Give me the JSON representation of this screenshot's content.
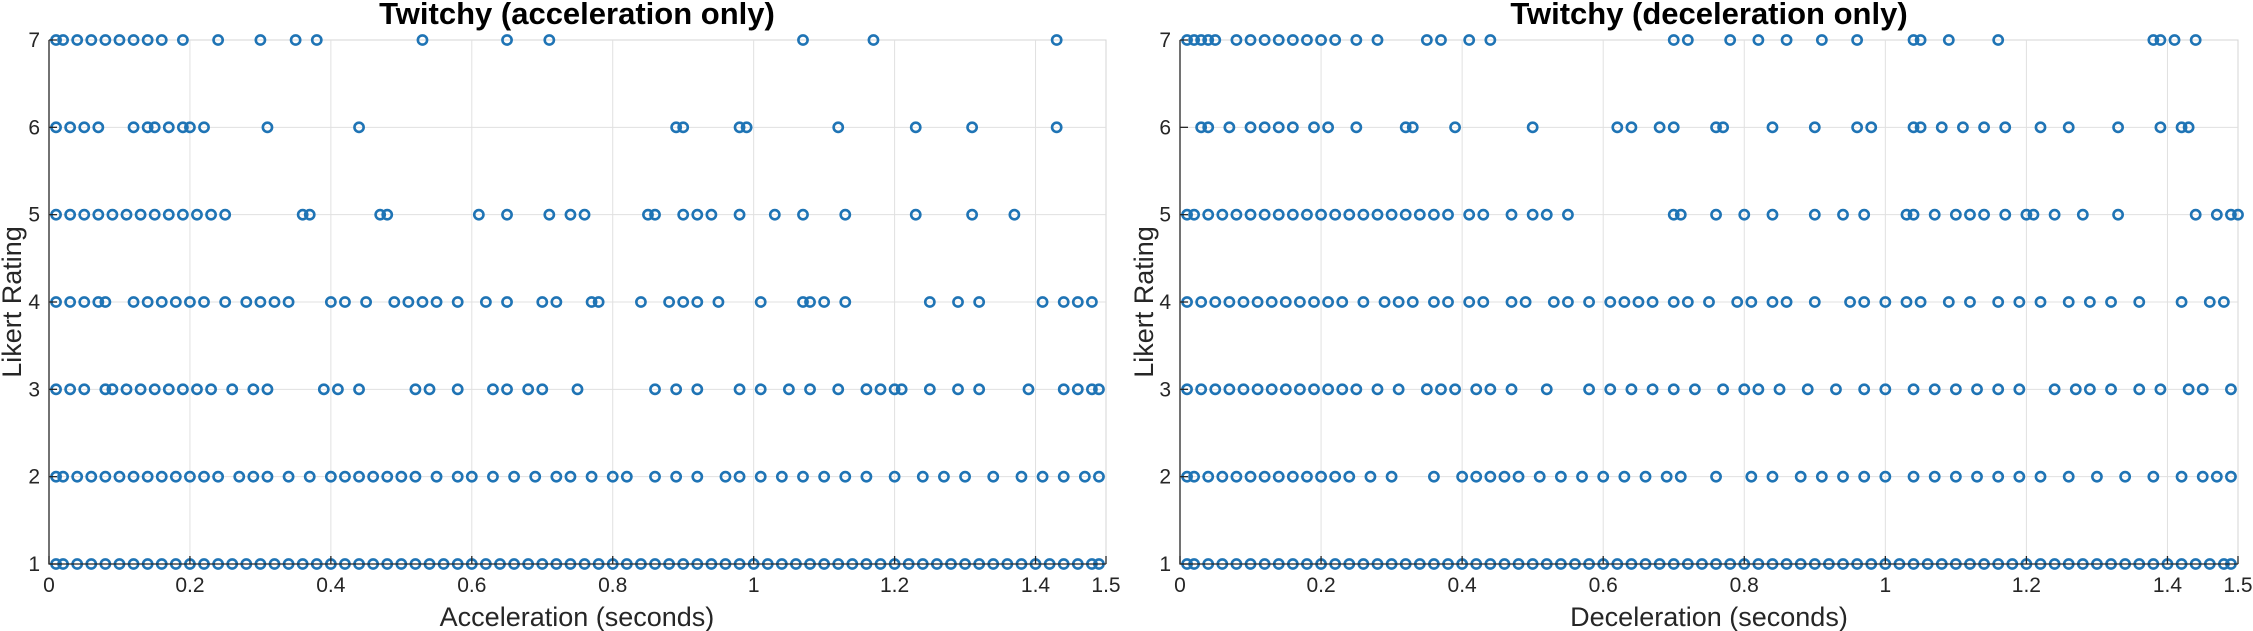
{
  "chart_data": [
    {
      "type": "scatter",
      "title": "Twitchy (acceleration only)",
      "xlabel": "Acceleration (seconds)",
      "ylabel": "Likert Rating",
      "xlim": [
        0,
        1.5
      ],
      "ylim": [
        1,
        7
      ],
      "xticks": [
        "0",
        "0.2",
        "0.4",
        "0.6",
        "0.8",
        "1",
        "1.2",
        "1.4",
        "1.5"
      ],
      "yticks": [
        "1",
        "2",
        "3",
        "4",
        "5",
        "6",
        "7"
      ],
      "grid": true,
      "color": "#1f74b5",
      "series": [
        {
          "y": 7,
          "x": [
            0.01,
            0.02,
            0.04,
            0.06,
            0.08,
            0.1,
            0.12,
            0.14,
            0.16,
            0.19,
            0.24,
            0.3,
            0.35,
            0.38,
            0.53,
            0.65,
            0.71,
            1.07,
            1.17,
            1.43
          ]
        },
        {
          "y": 6,
          "x": [
            0.01,
            0.03,
            0.05,
            0.07,
            0.12,
            0.14,
            0.15,
            0.17,
            0.19,
            0.2,
            0.22,
            0.31,
            0.44,
            0.89,
            0.9,
            0.98,
            0.99,
            1.12,
            1.23,
            1.31,
            1.43
          ]
        },
        {
          "y": 5,
          "x": [
            0.01,
            0.03,
            0.05,
            0.07,
            0.09,
            0.11,
            0.13,
            0.15,
            0.17,
            0.19,
            0.21,
            0.23,
            0.25,
            0.36,
            0.37,
            0.47,
            0.48,
            0.61,
            0.65,
            0.71,
            0.74,
            0.76,
            0.85,
            0.86,
            0.9,
            0.92,
            0.94,
            0.98,
            1.03,
            1.07,
            1.13,
            1.23,
            1.31,
            1.37
          ]
        },
        {
          "y": 4,
          "x": [
            0.01,
            0.03,
            0.05,
            0.07,
            0.08,
            0.12,
            0.14,
            0.16,
            0.18,
            0.2,
            0.22,
            0.25,
            0.28,
            0.3,
            0.32,
            0.34,
            0.4,
            0.42,
            0.45,
            0.49,
            0.51,
            0.53,
            0.55,
            0.58,
            0.62,
            0.65,
            0.7,
            0.72,
            0.77,
            0.78,
            0.84,
            0.88,
            0.9,
            0.92,
            0.95,
            1.01,
            1.07,
            1.08,
            1.1,
            1.13,
            1.25,
            1.29,
            1.32,
            1.41,
            1.44,
            1.46,
            1.48
          ]
        },
        {
          "y": 3,
          "x": [
            0.01,
            0.03,
            0.05,
            0.08,
            0.09,
            0.11,
            0.13,
            0.15,
            0.17,
            0.19,
            0.21,
            0.23,
            0.26,
            0.29,
            0.31,
            0.39,
            0.41,
            0.44,
            0.52,
            0.54,
            0.58,
            0.63,
            0.65,
            0.68,
            0.7,
            0.75,
            0.86,
            0.89,
            0.92,
            0.98,
            1.01,
            1.05,
            1.08,
            1.12,
            1.16,
            1.18,
            1.2,
            1.21,
            1.25,
            1.29,
            1.32,
            1.39,
            1.44,
            1.46,
            1.48,
            1.49
          ]
        },
        {
          "y": 2,
          "x": [
            0.01,
            0.02,
            0.04,
            0.06,
            0.08,
            0.1,
            0.12,
            0.14,
            0.16,
            0.18,
            0.2,
            0.22,
            0.24,
            0.27,
            0.29,
            0.31,
            0.34,
            0.37,
            0.4,
            0.42,
            0.44,
            0.46,
            0.48,
            0.5,
            0.52,
            0.55,
            0.58,
            0.6,
            0.63,
            0.66,
            0.69,
            0.72,
            0.74,
            0.77,
            0.8,
            0.82,
            0.86,
            0.89,
            0.92,
            0.96,
            0.98,
            1.01,
            1.04,
            1.07,
            1.1,
            1.13,
            1.16,
            1.2,
            1.24,
            1.27,
            1.3,
            1.34,
            1.38,
            1.41,
            1.44,
            1.47,
            1.49
          ]
        },
        {
          "y": 1,
          "x": [
            0.01,
            0.02,
            0.04,
            0.06,
            0.08,
            0.1,
            0.12,
            0.14,
            0.16,
            0.18,
            0.2,
            0.22,
            0.24,
            0.26,
            0.28,
            0.3,
            0.32,
            0.34,
            0.36,
            0.38,
            0.4,
            0.42,
            0.44,
            0.46,
            0.48,
            0.5,
            0.52,
            0.54,
            0.56,
            0.58,
            0.6,
            0.62,
            0.64,
            0.66,
            0.68,
            0.7,
            0.72,
            0.74,
            0.76,
            0.78,
            0.8,
            0.82,
            0.84,
            0.86,
            0.88,
            0.9,
            0.92,
            0.94,
            0.96,
            0.98,
            1.0,
            1.02,
            1.04,
            1.06,
            1.08,
            1.1,
            1.12,
            1.14,
            1.16,
            1.18,
            1.2,
            1.22,
            1.24,
            1.26,
            1.28,
            1.3,
            1.32,
            1.34,
            1.36,
            1.38,
            1.4,
            1.42,
            1.44,
            1.46,
            1.48,
            1.49
          ]
        }
      ]
    },
    {
      "type": "scatter",
      "title": "Twitchy (deceleration only)",
      "xlabel": "Deceleration (seconds)",
      "ylabel": "Likert Rating",
      "xlim": [
        0,
        1.5
      ],
      "ylim": [
        1,
        7
      ],
      "xticks": [
        "0",
        "0.2",
        "0.4",
        "0.6",
        "0.8",
        "1",
        "1.2",
        "1.4",
        "1.5"
      ],
      "yticks": [
        "1",
        "2",
        "3",
        "4",
        "5",
        "6",
        "7"
      ],
      "grid": true,
      "color": "#1f74b5",
      "series": [
        {
          "y": 7,
          "x": [
            0.01,
            0.02,
            0.03,
            0.04,
            0.05,
            0.08,
            0.1,
            0.12,
            0.14,
            0.16,
            0.18,
            0.2,
            0.22,
            0.25,
            0.28,
            0.35,
            0.37,
            0.41,
            0.44,
            0.7,
            0.72,
            0.78,
            0.82,
            0.86,
            0.91,
            0.96,
            1.04,
            1.05,
            1.09,
            1.16,
            1.38,
            1.39,
            1.41,
            1.44
          ]
        },
        {
          "y": 6,
          "x": [
            0.03,
            0.04,
            0.07,
            0.1,
            0.12,
            0.14,
            0.16,
            0.19,
            0.21,
            0.25,
            0.32,
            0.33,
            0.39,
            0.5,
            0.62,
            0.64,
            0.68,
            0.7,
            0.76,
            0.77,
            0.84,
            0.9,
            0.96,
            0.98,
            1.04,
            1.05,
            1.08,
            1.11,
            1.14,
            1.17,
            1.22,
            1.26,
            1.33,
            1.39,
            1.42,
            1.43
          ]
        },
        {
          "y": 5,
          "x": [
            0.01,
            0.02,
            0.04,
            0.06,
            0.08,
            0.1,
            0.12,
            0.14,
            0.16,
            0.18,
            0.2,
            0.22,
            0.24,
            0.26,
            0.28,
            0.3,
            0.32,
            0.34,
            0.36,
            0.38,
            0.41,
            0.43,
            0.47,
            0.5,
            0.52,
            0.55,
            0.7,
            0.71,
            0.76,
            0.8,
            0.84,
            0.9,
            0.94,
            0.97,
            1.03,
            1.04,
            1.07,
            1.1,
            1.12,
            1.14,
            1.17,
            1.2,
            1.21,
            1.24,
            1.28,
            1.33,
            1.44,
            1.47,
            1.49,
            1.5
          ]
        },
        {
          "y": 4,
          "x": [
            0.01,
            0.03,
            0.05,
            0.07,
            0.09,
            0.11,
            0.13,
            0.15,
            0.17,
            0.19,
            0.21,
            0.23,
            0.26,
            0.29,
            0.31,
            0.33,
            0.36,
            0.38,
            0.41,
            0.43,
            0.47,
            0.49,
            0.53,
            0.55,
            0.58,
            0.61,
            0.63,
            0.65,
            0.67,
            0.7,
            0.72,
            0.75,
            0.79,
            0.81,
            0.84,
            0.86,
            0.9,
            0.95,
            0.97,
            1.0,
            1.03,
            1.05,
            1.09,
            1.12,
            1.16,
            1.19,
            1.22,
            1.26,
            1.29,
            1.32,
            1.36,
            1.42,
            1.46,
            1.48
          ]
        },
        {
          "y": 3,
          "x": [
            0.01,
            0.03,
            0.05,
            0.07,
            0.09,
            0.11,
            0.13,
            0.15,
            0.17,
            0.19,
            0.21,
            0.23,
            0.25,
            0.28,
            0.31,
            0.35,
            0.37,
            0.39,
            0.42,
            0.44,
            0.47,
            0.52,
            0.58,
            0.61,
            0.64,
            0.67,
            0.7,
            0.73,
            0.77,
            0.8,
            0.82,
            0.85,
            0.89,
            0.93,
            0.97,
            1.0,
            1.04,
            1.07,
            1.1,
            1.13,
            1.16,
            1.19,
            1.24,
            1.27,
            1.29,
            1.32,
            1.36,
            1.39,
            1.43,
            1.45,
            1.49
          ]
        },
        {
          "y": 2,
          "x": [
            0.01,
            0.02,
            0.04,
            0.06,
            0.08,
            0.1,
            0.12,
            0.14,
            0.16,
            0.18,
            0.2,
            0.22,
            0.24,
            0.27,
            0.3,
            0.36,
            0.4,
            0.42,
            0.44,
            0.46,
            0.48,
            0.51,
            0.54,
            0.57,
            0.6,
            0.63,
            0.66,
            0.69,
            0.71,
            0.76,
            0.81,
            0.84,
            0.88,
            0.91,
            0.94,
            0.97,
            1.0,
            1.04,
            1.07,
            1.1,
            1.13,
            1.16,
            1.19,
            1.22,
            1.26,
            1.3,
            1.34,
            1.38,
            1.42,
            1.45,
            1.47,
            1.49
          ]
        },
        {
          "y": 1,
          "x": [
            0.01,
            0.02,
            0.04,
            0.06,
            0.08,
            0.1,
            0.12,
            0.14,
            0.16,
            0.18,
            0.2,
            0.22,
            0.24,
            0.26,
            0.28,
            0.3,
            0.32,
            0.34,
            0.36,
            0.38,
            0.4,
            0.42,
            0.44,
            0.46,
            0.48,
            0.5,
            0.52,
            0.54,
            0.56,
            0.58,
            0.6,
            0.62,
            0.64,
            0.66,
            0.68,
            0.7,
            0.72,
            0.74,
            0.76,
            0.78,
            0.8,
            0.82,
            0.84,
            0.86,
            0.88,
            0.9,
            0.92,
            0.94,
            0.96,
            0.98,
            1.0,
            1.02,
            1.04,
            1.06,
            1.08,
            1.1,
            1.12,
            1.14,
            1.16,
            1.18,
            1.2,
            1.22,
            1.24,
            1.26,
            1.28,
            1.3,
            1.32,
            1.34,
            1.36,
            1.38,
            1.4,
            1.42,
            1.44,
            1.46,
            1.48,
            1.49
          ]
        }
      ]
    }
  ]
}
